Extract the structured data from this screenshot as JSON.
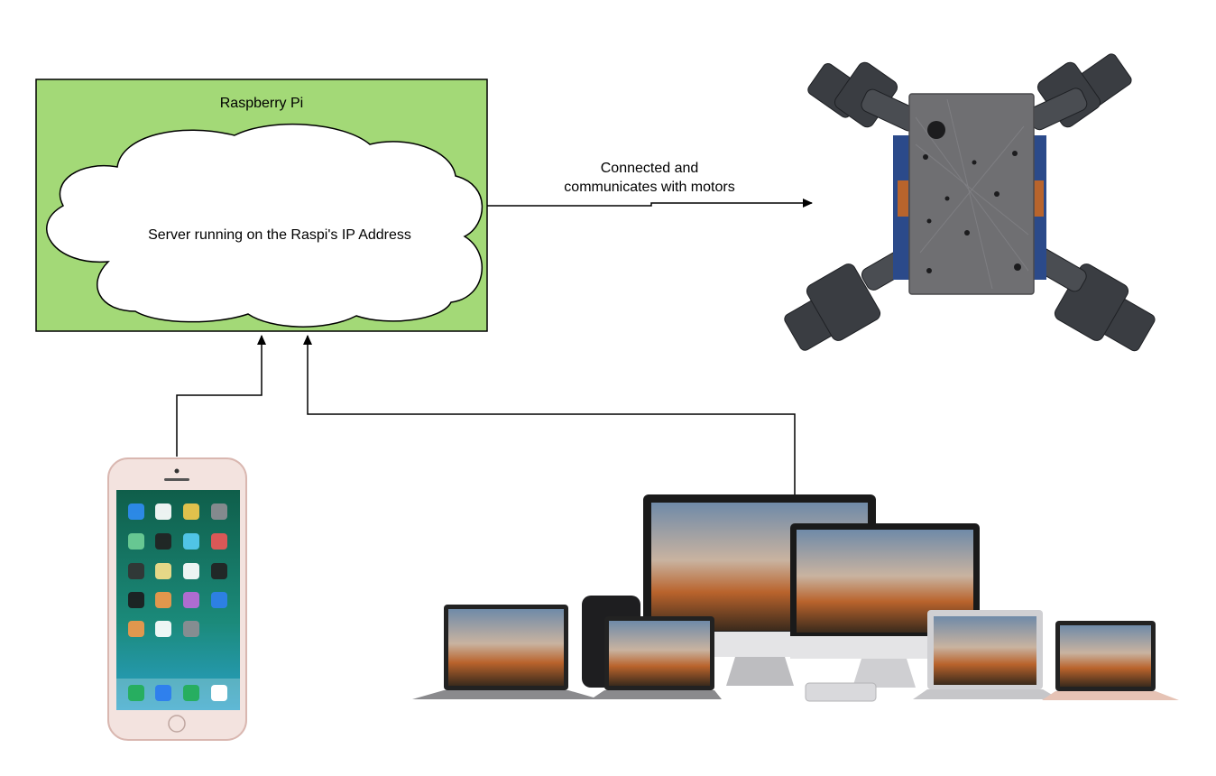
{
  "raspberry_pi": {
    "title": "Raspberry Pi",
    "server_label": "Server running on the Raspi's IP Address"
  },
  "connection": {
    "label_line1": "Connected and",
    "label_line2": "communicates with motors"
  },
  "devices": {
    "phone": "phone-icon",
    "computers": "computers-icon",
    "robot": "quadruped-robot-icon"
  },
  "colors": {
    "pi_box": "#a3d977",
    "cloud": "#ffffff",
    "stroke": "#000000"
  }
}
